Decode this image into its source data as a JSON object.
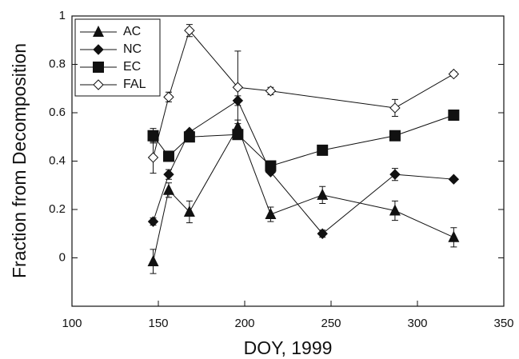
{
  "chart_data": {
    "type": "line",
    "x_label": "DOY, 1999",
    "y_label": "Fraction from Decomposition",
    "x": [
      147,
      156,
      168,
      196,
      215,
      245,
      287,
      321
    ],
    "xlim": [
      100,
      350
    ],
    "xticks": [
      100,
      150,
      200,
      250,
      300,
      350
    ],
    "ylim": [
      -0.2,
      1
    ],
    "yticks": [
      0,
      0.2,
      0.4,
      0.6,
      0.8,
      1
    ],
    "legend": "top-left",
    "series": [
      {
        "name": "AC",
        "color": "#111111",
        "marker": "triangle",
        "values": [
          -0.015,
          0.28,
          0.19,
          0.54,
          0.18,
          0.26,
          0.195,
          0.085
        ],
        "errors": [
          0.05,
          0.03,
          0.045,
          0.03,
          0.03,
          0.035,
          0.04,
          0.04
        ]
      },
      {
        "name": "NC",
        "color": "#111111",
        "marker": "diamond",
        "values": [
          0.15,
          0.345,
          0.52,
          0.65,
          0.355,
          0.1,
          0.345,
          0.325
        ],
        "errors": [
          0.015,
          0.02,
          null,
          0.02,
          null,
          0.015,
          0.025,
          null
        ]
      },
      {
        "name": "EC",
        "color": "#111111",
        "marker": "square",
        "values": [
          0.505,
          0.42,
          0.5,
          0.51,
          0.38,
          0.445,
          0.505,
          0.59
        ],
        "errors": [
          0.03,
          null,
          null,
          null,
          null,
          null,
          null,
          null
        ]
      },
      {
        "name": "FAL",
        "color": "#111111",
        "marker": "open-diamond",
        "x": [
          147,
          156,
          168,
          196,
          215,
          287,
          321
        ],
        "values": [
          0.415,
          0.665,
          0.94,
          0.705,
          0.69,
          0.62,
          0.76
        ],
        "errors": [
          0.065,
          0.02,
          0.025,
          0.15,
          0.015,
          0.035,
          0.01
        ]
      }
    ]
  }
}
